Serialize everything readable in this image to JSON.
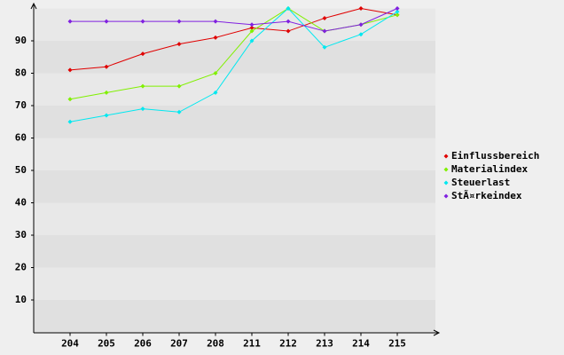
{
  "chart_data": {
    "type": "line",
    "categories": [
      "204",
      "205",
      "206",
      "207",
      "208",
      "211",
      "212",
      "213",
      "214",
      "215"
    ],
    "series": [
      {
        "name": "Einflussbereich",
        "color": "#e00000",
        "values": [
          81,
          82,
          86,
          89,
          91,
          94,
          93,
          97,
          100,
          98
        ]
      },
      {
        "name": "Materialindex",
        "color": "#80f000",
        "values": [
          72,
          74,
          76,
          76,
          80,
          93,
          100,
          93,
          95,
          98
        ]
      },
      {
        "name": "Steuerlast",
        "color": "#00e8f0",
        "values": [
          65,
          67,
          69,
          68,
          74,
          90,
          100,
          88,
          92,
          99
        ]
      },
      {
        "name": "StÃ¤rkeindex",
        "color": "#8020e0",
        "values": [
          96,
          96,
          96,
          96,
          96,
          95,
          96,
          93,
          95,
          100
        ]
      }
    ],
    "ylim": [
      0,
      100
    ],
    "yticks": [
      10,
      20,
      30,
      40,
      50,
      60,
      70,
      80,
      90
    ],
    "grid": true,
    "legend": "right"
  }
}
